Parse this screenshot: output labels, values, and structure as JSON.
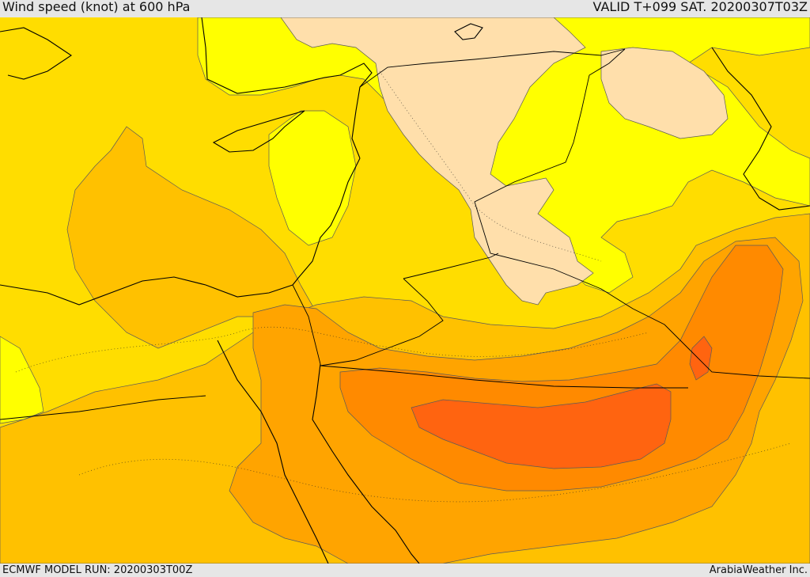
{
  "header": {
    "title": "Wind speed (knot) at 600 hPa",
    "valid": "VALID T+099 SAT. 20200307T03Z"
  },
  "footer": {
    "model_run": "ECMWF MODEL RUN: 20200303T00Z",
    "credit": "ArabiaWeather Inc."
  },
  "colors": {
    "band_light": "#ffdfab",
    "band_1": "#ffff00",
    "band_2": "#ffdd00",
    "band_3": "#ffc100",
    "band_4": "#ffa400",
    "band_5": "#ff8a00",
    "band_6": "#ff6410"
  }
}
